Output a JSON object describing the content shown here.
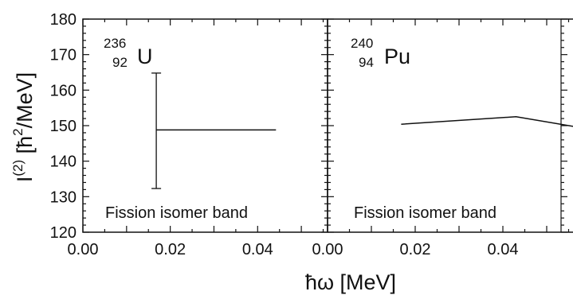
{
  "chart_data": {
    "type": "line",
    "xlabel": "ħω [MeV]",
    "ylabel_main": "I",
    "ylabel_sup": "(2)",
    "ylabel_rest": " [ħ",
    "ylabel_sup2": "2",
    "ylabel_end": "/MeV]",
    "ylim": [
      120,
      180
    ],
    "xlim": [
      0.0,
      0.056
    ],
    "y_ticks": [
      120,
      130,
      140,
      150,
      160,
      170,
      180
    ],
    "x_ticks": [
      0.0,
      0.02,
      0.04
    ],
    "x_tick_labels": [
      "0.00",
      "0.02",
      "0.04"
    ],
    "grid": false,
    "panels": [
      {
        "isotope_mass": "236",
        "isotope_z": "92",
        "isotope_symbol": "U",
        "annotation": "Fission isomer band",
        "series": [
          {
            "x": [
              0.0168,
              0.0442
            ],
            "y": [
              148.8,
              148.8
            ]
          }
        ],
        "error_bars": [
          {
            "x": 0.0168,
            "y": 148.8,
            "low": 132.3,
            "high": 164.8
          }
        ]
      },
      {
        "isotope_mass": "240",
        "isotope_z": "94",
        "isotope_symbol": "Pu",
        "annotation": "Fission isomer band",
        "series": [
          {
            "x": [
              0.0168,
              0.043,
              0.056
            ],
            "y": [
              150.4,
              152.5,
              149.8
            ]
          }
        ],
        "error_bars": []
      }
    ]
  }
}
